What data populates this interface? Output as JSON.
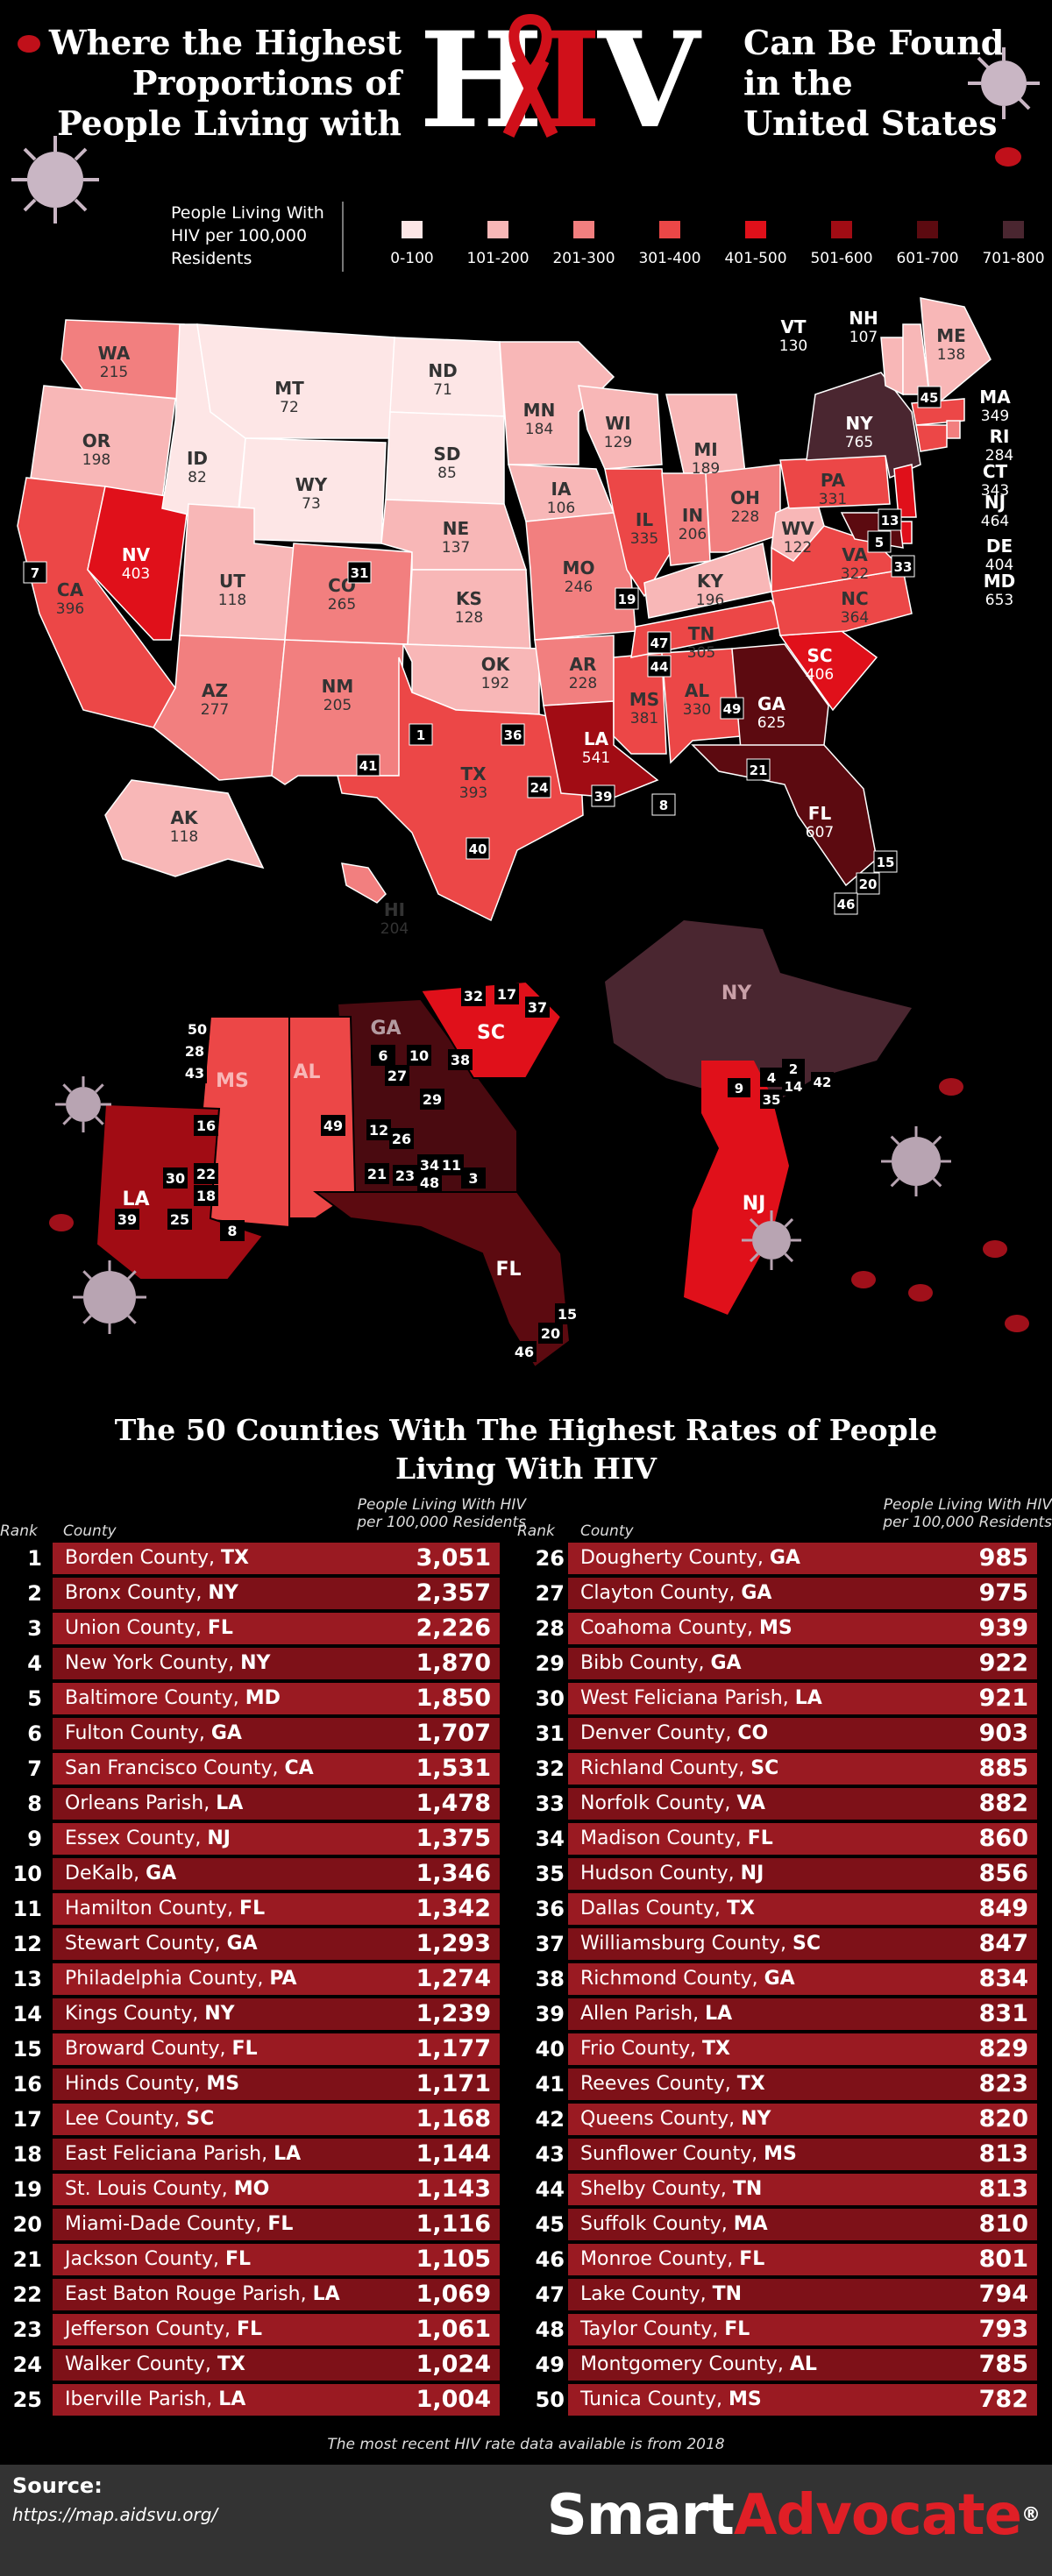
{
  "title": {
    "left_lines": [
      "Where the Highest",
      "Proportions of",
      "People Living with"
    ],
    "hiv_h": "H",
    "hiv_i": "I",
    "hiv_v": "V",
    "right_lines": [
      "Can Be Found",
      "in the",
      "United States"
    ]
  },
  "legend": {
    "label_lines": [
      "People Living With",
      "HIV per 100,000",
      "Residents"
    ],
    "bins": [
      {
        "label": "0-100",
        "color": "#fde6e6"
      },
      {
        "label": "101-200",
        "color": "#f8b7b7"
      },
      {
        "label": "201-300",
        "color": "#f27f7f"
      },
      {
        "label": "301-400",
        "color": "#ec4747"
      },
      {
        "label": "401-500",
        "color": "#e0101a"
      },
      {
        "label": "501-600",
        "color": "#a10c14"
      },
      {
        "label": "601-700",
        "color": "#5c0a10"
      },
      {
        "label": "701-800",
        "color": "#4a2630"
      }
    ]
  },
  "states": [
    {
      "abbr": "WA",
      "value": "215"
    },
    {
      "abbr": "OR",
      "value": "198"
    },
    {
      "abbr": "CA",
      "value": "396"
    },
    {
      "abbr": "NV",
      "value": "403"
    },
    {
      "abbr": "ID",
      "value": "82"
    },
    {
      "abbr": "MT",
      "value": "72"
    },
    {
      "abbr": "WY",
      "value": "73"
    },
    {
      "abbr": "UT",
      "value": "118"
    },
    {
      "abbr": "AZ",
      "value": "277"
    },
    {
      "abbr": "CO",
      "value": "265"
    },
    {
      "abbr": "NM",
      "value": "205"
    },
    {
      "abbr": "ND",
      "value": "71"
    },
    {
      "abbr": "SD",
      "value": "85"
    },
    {
      "abbr": "NE",
      "value": "137"
    },
    {
      "abbr": "KS",
      "value": "128"
    },
    {
      "abbr": "OK",
      "value": "192"
    },
    {
      "abbr": "TX",
      "value": "393"
    },
    {
      "abbr": "MN",
      "value": "184"
    },
    {
      "abbr": "IA",
      "value": "106"
    },
    {
      "abbr": "MO",
      "value": "246"
    },
    {
      "abbr": "AR",
      "value": "228"
    },
    {
      "abbr": "LA",
      "value": "541"
    },
    {
      "abbr": "WI",
      "value": "129"
    },
    {
      "abbr": "IL",
      "value": "335"
    },
    {
      "abbr": "MS",
      "value": "381"
    },
    {
      "abbr": "MI",
      "value": "189"
    },
    {
      "abbr": "IN",
      "value": "206"
    },
    {
      "abbr": "KY",
      "value": "196"
    },
    {
      "abbr": "TN",
      "value": "305"
    },
    {
      "abbr": "AL",
      "value": "330"
    },
    {
      "abbr": "OH",
      "value": "228"
    },
    {
      "abbr": "GA",
      "value": "625"
    },
    {
      "abbr": "FL",
      "value": "607"
    },
    {
      "abbr": "SC",
      "value": "406"
    },
    {
      "abbr": "NC",
      "value": "364"
    },
    {
      "abbr": "VA",
      "value": "322"
    },
    {
      "abbr": "WV",
      "value": "122"
    },
    {
      "abbr": "PA",
      "value": "331"
    },
    {
      "abbr": "NY",
      "value": "765"
    },
    {
      "abbr": "VT",
      "value": "130"
    },
    {
      "abbr": "NH",
      "value": "107"
    },
    {
      "abbr": "ME",
      "value": "138"
    },
    {
      "abbr": "MA",
      "value": "349"
    },
    {
      "abbr": "RI",
      "value": "284"
    },
    {
      "abbr": "CT",
      "value": "343"
    },
    {
      "abbr": "NJ",
      "value": "464"
    },
    {
      "abbr": "DE",
      "value": "404"
    },
    {
      "abbr": "MD",
      "value": "653"
    },
    {
      "abbr": "AK",
      "value": "118"
    },
    {
      "abbr": "HI",
      "value": "204"
    }
  ],
  "map_markers": [
    "7",
    "31",
    "1",
    "36",
    "41",
    "24",
    "40",
    "19",
    "47",
    "44",
    "39",
    "8",
    "49",
    "21",
    "15",
    "20",
    "46",
    "13",
    "5",
    "33",
    "45"
  ],
  "inset_south": {
    "state_labels": [
      "GA",
      "SC",
      "MS",
      "AL",
      "LA",
      "FL"
    ],
    "markers": [
      "50",
      "28",
      "43",
      "16",
      "30",
      "22",
      "18",
      "25",
      "39",
      "8",
      "49",
      "6",
      "10",
      "27",
      "38",
      "29",
      "12",
      "26",
      "21",
      "23",
      "34",
      "11",
      "48",
      "3",
      "32",
      "17",
      "37",
      "15",
      "20",
      "46"
    ]
  },
  "inset_northeast": {
    "state_labels": [
      "NY",
      "NJ"
    ],
    "markers": [
      "9",
      "4",
      "35",
      "2",
      "14",
      "42"
    ]
  },
  "table": {
    "title_lines": [
      "The 50 Counties With The Highest Rates of People",
      "Living With HIV"
    ],
    "rank_header": "Rank",
    "county_header": "County",
    "value_header_lines": [
      "People Living With HIV",
      "per 100,000 Residents"
    ],
    "rows": [
      {
        "rank": "1",
        "county": "Borden County,",
        "state": "TX",
        "value": "3,051"
      },
      {
        "rank": "2",
        "county": "Bronx County,",
        "state": "NY",
        "value": "2,357"
      },
      {
        "rank": "3",
        "county": "Union County,",
        "state": "FL",
        "value": "2,226"
      },
      {
        "rank": "4",
        "county": "New York County,",
        "state": "NY",
        "value": "1,870"
      },
      {
        "rank": "5",
        "county": "Baltimore County,",
        "state": "MD",
        "value": "1,850"
      },
      {
        "rank": "6",
        "county": "Fulton County,",
        "state": "GA",
        "value": "1,707"
      },
      {
        "rank": "7",
        "county": "San Francisco County,",
        "state": "CA",
        "value": "1,531"
      },
      {
        "rank": "8",
        "county": "Orleans Parish,",
        "state": "LA",
        "value": "1,478"
      },
      {
        "rank": "9",
        "county": "Essex County,",
        "state": "NJ",
        "value": "1,375"
      },
      {
        "rank": "10",
        "county": "DeKalb,",
        "state": "GA",
        "value": "1,346"
      },
      {
        "rank": "11",
        "county": "Hamilton County,",
        "state": "FL",
        "value": "1,342"
      },
      {
        "rank": "12",
        "county": "Stewart County,",
        "state": "GA",
        "value": "1,293"
      },
      {
        "rank": "13",
        "county": "Philadelphia County,",
        "state": "PA",
        "value": "1,274"
      },
      {
        "rank": "14",
        "county": "Kings County,",
        "state": "NY",
        "value": "1,239"
      },
      {
        "rank": "15",
        "county": "Broward County,",
        "state": "FL",
        "value": "1,177"
      },
      {
        "rank": "16",
        "county": "Hinds County,",
        "state": "MS",
        "value": "1,171"
      },
      {
        "rank": "17",
        "county": "Lee County,",
        "state": "SC",
        "value": "1,168"
      },
      {
        "rank": "18",
        "county": "East Feliciana Parish,",
        "state": "LA",
        "value": "1,144"
      },
      {
        "rank": "19",
        "county": "St. Louis County,",
        "state": "MO",
        "value": "1,143"
      },
      {
        "rank": "20",
        "county": "Miami-Dade County,",
        "state": "FL",
        "value": "1,116"
      },
      {
        "rank": "21",
        "county": "Jackson County,",
        "state": "FL",
        "value": "1,105"
      },
      {
        "rank": "22",
        "county": "East Baton Rouge Parish,",
        "state": "LA",
        "value": "1,069"
      },
      {
        "rank": "23",
        "county": "Jefferson County,",
        "state": "FL",
        "value": "1,061"
      },
      {
        "rank": "24",
        "county": "Walker County,",
        "state": "TX",
        "value": "1,024"
      },
      {
        "rank": "25",
        "county": "Iberville Parish,",
        "state": "LA",
        "value": "1,004"
      },
      {
        "rank": "26",
        "county": "Dougherty County,",
        "state": "GA",
        "value": "985"
      },
      {
        "rank": "27",
        "county": "Clayton County,",
        "state": "GA",
        "value": "975"
      },
      {
        "rank": "28",
        "county": "Coahoma County,",
        "state": "MS",
        "value": "939"
      },
      {
        "rank": "29",
        "county": "Bibb County,",
        "state": "GA",
        "value": "922"
      },
      {
        "rank": "30",
        "county": "West Feliciana Parish,",
        "state": "LA",
        "value": "921"
      },
      {
        "rank": "31",
        "county": "Denver County,",
        "state": "CO",
        "value": "903"
      },
      {
        "rank": "32",
        "county": "Richland County,",
        "state": "SC",
        "value": "885"
      },
      {
        "rank": "33",
        "county": "Norfolk County,",
        "state": "VA",
        "value": "882"
      },
      {
        "rank": "34",
        "county": "Madison County,",
        "state": "FL",
        "value": "860"
      },
      {
        "rank": "35",
        "county": "Hudson County,",
        "state": "NJ",
        "value": "856"
      },
      {
        "rank": "36",
        "county": "Dallas County,",
        "state": "TX",
        "value": "849"
      },
      {
        "rank": "37",
        "county": "Williamsburg County,",
        "state": "SC",
        "value": "847"
      },
      {
        "rank": "38",
        "county": "Richmond County,",
        "state": "GA",
        "value": "834"
      },
      {
        "rank": "39",
        "county": "Allen Parish,",
        "state": "LA",
        "value": "831"
      },
      {
        "rank": "40",
        "county": "Frio County,",
        "state": "TX",
        "value": "829"
      },
      {
        "rank": "41",
        "county": "Reeves County,",
        "state": "TX",
        "value": "823"
      },
      {
        "rank": "42",
        "county": "Queens County,",
        "state": "NY",
        "value": "820"
      },
      {
        "rank": "43",
        "county": "Sunflower County,",
        "state": "MS",
        "value": "813"
      },
      {
        "rank": "44",
        "county": "Shelby County,",
        "state": "TN",
        "value": "813"
      },
      {
        "rank": "45",
        "county": "Suffolk County,",
        "state": "MA",
        "value": "810"
      },
      {
        "rank": "46",
        "county": "Monroe County,",
        "state": "FL",
        "value": "801"
      },
      {
        "rank": "47",
        "county": "Lake County,",
        "state": "TN",
        "value": "794"
      },
      {
        "rank": "48",
        "county": "Taylor County,",
        "state": "FL",
        "value": "793"
      },
      {
        "rank": "49",
        "county": "Montgomery County,",
        "state": "AL",
        "value": "785"
      },
      {
        "rank": "50",
        "county": "Tunica County,",
        "state": "MS",
        "value": "782"
      }
    ],
    "footnote": "The most recent HIV rate data available is from 2018"
  },
  "footer": {
    "source_title": "Source:",
    "source_url": "https://map.aidsvu.org/",
    "brand_smart": "Smart",
    "brand_advocate": "Advocate",
    "brand_mark": "®"
  },
  "colors": {
    "row_odd": "#9a1a22",
    "row_even": "#7e1118",
    "accent": "#e01f26"
  }
}
